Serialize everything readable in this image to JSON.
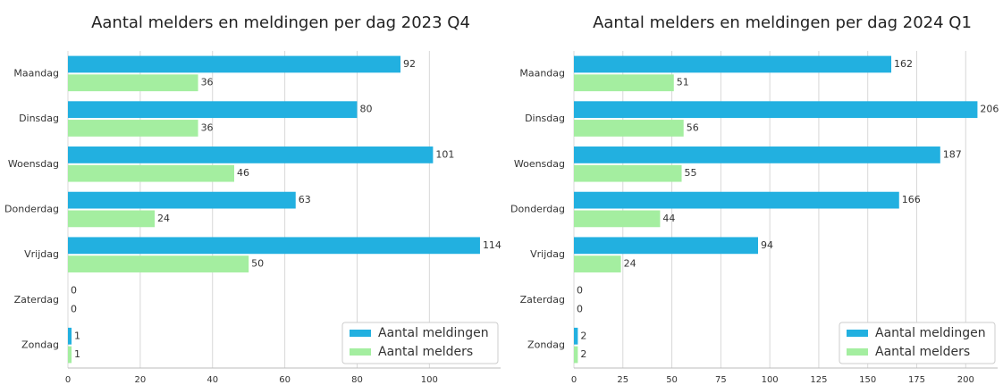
{
  "chart_data": [
    {
      "type": "bar",
      "orientation": "horizontal",
      "title": "Aantal melders en meldingen per dag 2023 Q4",
      "categories": [
        "Maandag",
        "Dinsdag",
        "Woensdag",
        "Donderdag",
        "Vrijdag",
        "Zaterdag",
        "Zondag"
      ],
      "series": [
        {
          "name": "Aantal meldingen",
          "color": "#22b0e0",
          "values": [
            92,
            80,
            101,
            63,
            114,
            0,
            1
          ]
        },
        {
          "name": "Aantal melders",
          "color": "#a4eea0",
          "values": [
            36,
            36,
            46,
            24,
            50,
            0,
            1
          ]
        }
      ],
      "xlim": [
        0,
        119.7
      ],
      "xticks": [
        0,
        20,
        40,
        60,
        80,
        100
      ],
      "grid": true,
      "legend": "lower right"
    },
    {
      "type": "bar",
      "orientation": "horizontal",
      "title": "Aantal melders en meldingen per dag 2024 Q1",
      "categories": [
        "Maandag",
        "Dinsdag",
        "Woensdag",
        "Donderdag",
        "Vrijdag",
        "Zaterdag",
        "Zondag"
      ],
      "series": [
        {
          "name": "Aantal meldingen",
          "color": "#22b0e0",
          "values": [
            162,
            206,
            187,
            166,
            94,
            0,
            2
          ]
        },
        {
          "name": "Aantal melders",
          "color": "#a4eea0",
          "values": [
            51,
            56,
            55,
            44,
            24,
            0,
            2
          ]
        }
      ],
      "xlim": [
        0,
        216.3
      ],
      "xticks": [
        0,
        25,
        50,
        75,
        100,
        125,
        150,
        175,
        200
      ],
      "grid": true,
      "legend": "lower right"
    }
  ]
}
